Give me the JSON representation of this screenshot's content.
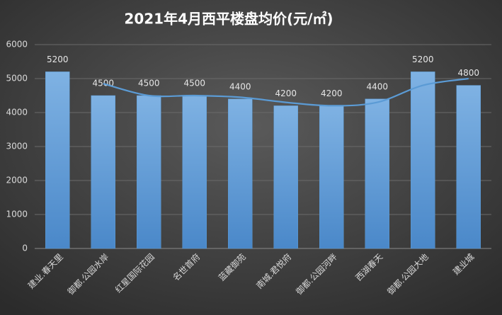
{
  "chart_data": {
    "type": "bar",
    "title": "2021年4月西平楼盘均价(元/㎡)",
    "categories": [
      "建业.春天里",
      "御都.公园水岸",
      "红星国际花园",
      "名世首府",
      "蓝藏御苑",
      "南城.君悦府",
      "御都.公园河畔",
      "西湖春天",
      "御都.公园大地",
      "建业城"
    ],
    "series": [
      {
        "type": "bar",
        "color": "#5b9bd5",
        "values": [
          5200,
          4500,
          4500,
          4500,
          4400,
          4200,
          4200,
          4400,
          5200,
          4800
        ]
      },
      {
        "type": "line",
        "color": "#5b9bd5",
        "values": [
          null,
          4850,
          4500,
          4500,
          4450,
          4300,
          4200,
          4300,
          4800,
          5000
        ]
      }
    ],
    "ylim": [
      0,
      6000
    ],
    "yticks": [
      0,
      1000,
      2000,
      3000,
      4000,
      5000,
      6000
    ],
    "grid": true
  }
}
